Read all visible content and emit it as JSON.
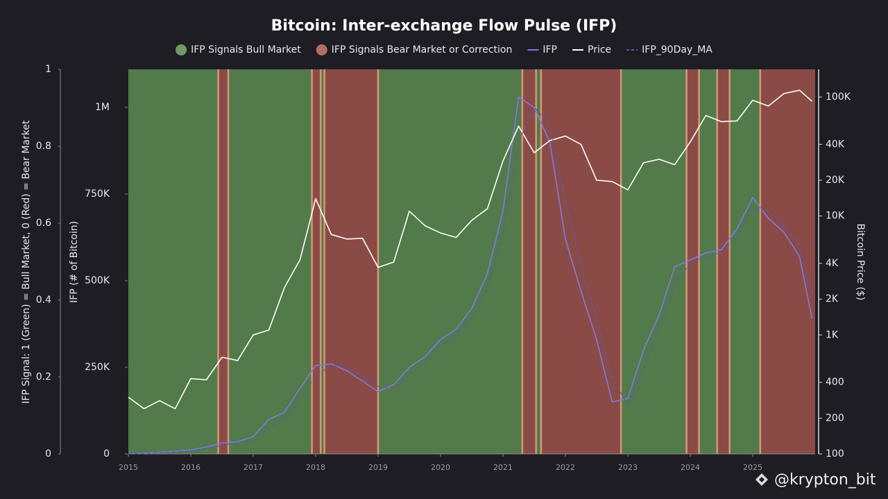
{
  "chart_data": {
    "type": "line",
    "title": "Bitcoin: Inter-exchange Flow Pulse (IFP)",
    "y3label": "IFP Signal: 1 (Green) = Bull Market, 0 (Red) = Bear Market",
    "ylabel": "IFP (# of Bitcoin)",
    "y2label": "Bitcoin Price ($)",
    "watermark": "@krypton_bit",
    "xlim": [
      2015,
      2026
    ],
    "xticks": [
      2015,
      2016,
      2017,
      2018,
      2019,
      2020,
      2021,
      2022,
      2023,
      2024,
      2025
    ],
    "ylim": [
      0,
      1110000
    ],
    "yticks": [
      0,
      {
        "value": 250000,
        "label": "250K"
      },
      {
        "value": 500000,
        "label": "500K"
      },
      {
        "value": 750000,
        "label": "750K"
      },
      {
        "value": 1000000,
        "label": "1M"
      }
    ],
    "y2lim": [
      100,
      171000
    ],
    "y2scale": "log",
    "y2ticks": [
      100,
      200,
      400,
      {
        "value": 1000,
        "label": "1K"
      },
      {
        "value": 2000,
        "label": "2K"
      },
      {
        "value": 4000,
        "label": "4K"
      },
      {
        "value": 10000,
        "label": "10K"
      },
      {
        "value": 20000,
        "label": "20K"
      },
      {
        "value": 40000,
        "label": "40K"
      },
      {
        "value": 100000,
        "label": "100K"
      }
    ],
    "y3lim": [
      0,
      1
    ],
    "y3ticks": [
      0,
      0.2,
      0.4,
      0.6,
      0.8,
      1
    ],
    "signals": [
      {
        "name": "IFP Signals Bull Market",
        "value": 1,
        "color": "#527a4a"
      },
      {
        "name": "IFP Signals Bear Market or Correction",
        "value": 0,
        "color": "#8a4b46"
      }
    ],
    "regions": [
      {
        "x0": 2015.0,
        "x1": 2016.44,
        "signal": 1
      },
      {
        "x0": 2016.44,
        "x1": 2016.6,
        "signal": 0
      },
      {
        "x0": 2016.6,
        "x1": 2017.94,
        "signal": 1
      },
      {
        "x0": 2017.94,
        "x1": 2018.08,
        "signal": 0
      },
      {
        "x0": 2018.08,
        "x1": 2018.14,
        "signal": 1
      },
      {
        "x0": 2018.14,
        "x1": 2019.0,
        "signal": 0
      },
      {
        "x0": 2019.0,
        "x1": 2021.31,
        "signal": 1
      },
      {
        "x0": 2021.31,
        "x1": 2021.53,
        "signal": 0
      },
      {
        "x0": 2021.53,
        "x1": 2021.61,
        "signal": 1
      },
      {
        "x0": 2021.61,
        "x1": 2022.89,
        "signal": 0
      },
      {
        "x0": 2022.89,
        "x1": 2023.94,
        "signal": 1
      },
      {
        "x0": 2023.94,
        "x1": 2024.14,
        "signal": 0
      },
      {
        "x0": 2024.14,
        "x1": 2024.43,
        "signal": 1
      },
      {
        "x0": 2024.43,
        "x1": 2024.63,
        "signal": 0
      },
      {
        "x0": 2024.63,
        "x1": 2025.12,
        "signal": 1
      },
      {
        "x0": 2025.12,
        "x1": 2026.0,
        "signal": 0
      }
    ],
    "x": [
      2015,
      2015.25,
      2015.5,
      2015.75,
      2016,
      2016.25,
      2016.5,
      2016.75,
      2017,
      2017.25,
      2017.5,
      2017.75,
      2018,
      2018.25,
      2018.5,
      2018.75,
      2019,
      2019.25,
      2019.5,
      2019.75,
      2020,
      2020.25,
      2020.5,
      2020.75,
      2021,
      2021.25,
      2021.5,
      2021.75,
      2022,
      2022.25,
      2022.5,
      2022.75,
      2023,
      2023.25,
      2023.5,
      2023.75,
      2024,
      2024.25,
      2024.5,
      2024.75,
      2025,
      2025.25,
      2025.5,
      2025.75,
      2025.95
    ],
    "series": [
      {
        "name": "IFP",
        "color": "#7d79e6",
        "axis": "y",
        "dashed": false,
        "values": [
          0,
          2000,
          5000,
          8000,
          12000,
          20000,
          32000,
          35000,
          50000,
          100000,
          120000,
          190000,
          255000,
          260000,
          240000,
          210000,
          180000,
          200000,
          250000,
          280000,
          330000,
          360000,
          420000,
          520000,
          700000,
          1030000,
          1000000,
          900000,
          620000,
          470000,
          330000,
          150000,
          160000,
          300000,
          400000,
          540000,
          560000,
          580000,
          590000,
          650000,
          740000,
          680000,
          640000,
          570000,
          390000
        ]
      },
      {
        "name": "Price",
        "color": "#ffffff",
        "axis": "y2",
        "dashed": false,
        "values": [
          300,
          240,
          280,
          240,
          430,
          420,
          650,
          610,
          1000,
          1100,
          2500,
          4300,
          14000,
          7000,
          6400,
          6500,
          3700,
          4100,
          11000,
          8300,
          7200,
          6600,
          9200,
          11500,
          29000,
          57000,
          34000,
          43000,
          47000,
          40000,
          20000,
          19500,
          16600,
          28000,
          30000,
          27000,
          42000,
          70000,
          62000,
          63000,
          94000,
          84000,
          107000,
          114000,
          92000
        ]
      },
      {
        "name": "IFP_90Day_MA",
        "color": "#5b58b8",
        "axis": "y",
        "dashed": true,
        "values": [
          0,
          1000,
          3000,
          6000,
          9000,
          15000,
          25000,
          32000,
          40000,
          75000,
          105000,
          160000,
          225000,
          255000,
          250000,
          225000,
          195000,
          190000,
          230000,
          265000,
          310000,
          345000,
          395000,
          480000,
          640000,
          900000,
          1000000,
          950000,
          730000,
          540000,
          390000,
          220000,
          140000,
          250000,
          360000,
          490000,
          550000,
          570000,
          580000,
          630000,
          710000,
          700000,
          660000,
          600000,
          460000
        ]
      }
    ]
  }
}
